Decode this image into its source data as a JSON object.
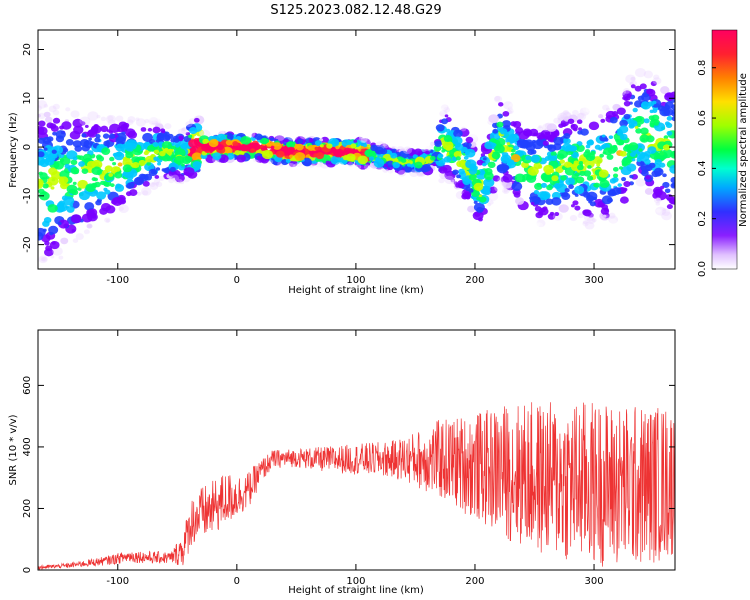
{
  "figure": {
    "title": "S125.2023.082.12.48.G29"
  },
  "chart_data": [
    {
      "type": "heatmap",
      "title": "",
      "xlabel": "Height of straight line (km)",
      "ylabel": "Frequency (Hz)",
      "xlim": [
        -167,
        368
      ],
      "ylim": [
        -25,
        24
      ],
      "xticks": [
        -100,
        0,
        100,
        200,
        300
      ],
      "yticks": [
        -20,
        -10,
        0,
        10,
        20
      ],
      "colorbar": {
        "label": "Normalized spectral amplitude",
        "range": [
          0.0,
          0.95
        ],
        "ticks": [
          "0.0",
          "0.2",
          "0.4",
          "0.6",
          "0.8"
        ],
        "colormap": [
          "#ffffff",
          "#e8d0ff",
          "#7a00ff",
          "#2040ff",
          "#00c8ff",
          "#00ff60",
          "#c8ff00",
          "#ffb000",
          "#ff3030",
          "#ff0060"
        ]
      },
      "ridge": [
        {
          "x": -165,
          "y": -8
        },
        {
          "x": -140,
          "y": -7
        },
        {
          "x": -120,
          "y": -5
        },
        {
          "x": -100,
          "y": -4
        },
        {
          "x": -80,
          "y": -2
        },
        {
          "x": -60,
          "y": -1
        },
        {
          "x": -45,
          "y": -2
        },
        {
          "x": -35,
          "y": 0
        },
        {
          "x": -20,
          "y": 0
        },
        {
          "x": 0,
          "y": 0
        },
        {
          "x": 20,
          "y": 0
        },
        {
          "x": 40,
          "y": -1
        },
        {
          "x": 60,
          "y": -1
        },
        {
          "x": 80,
          "y": -1
        },
        {
          "x": 100,
          "y": -1
        },
        {
          "x": 120,
          "y": -2
        },
        {
          "x": 140,
          "y": -3
        },
        {
          "x": 160,
          "y": -3
        },
        {
          "x": 175,
          "y": 1
        },
        {
          "x": 190,
          "y": -3
        },
        {
          "x": 205,
          "y": -9
        },
        {
          "x": 220,
          "y": 2
        },
        {
          "x": 240,
          "y": -4
        },
        {
          "x": 260,
          "y": -6
        },
        {
          "x": 280,
          "y": -3
        },
        {
          "x": 300,
          "y": -5
        },
        {
          "x": 320,
          "y": -2
        },
        {
          "x": 340,
          "y": 4
        },
        {
          "x": 360,
          "y": 0
        }
      ]
    },
    {
      "type": "line",
      "title": "",
      "xlabel": "Height of straight line (km)",
      "ylabel": "SNR (10 * v/v)",
      "xlim": [
        -167,
        368
      ],
      "ylim": [
        0,
        780
      ],
      "xticks": [
        -100,
        0,
        100,
        200,
        300
      ],
      "yticks": [
        0,
        200,
        400,
        600
      ],
      "color": "#ee3333",
      "envelope": {
        "x": [
          -167,
          -140,
          -110,
          -90,
          -70,
          -55,
          -45,
          -38,
          -30,
          -20,
          -10,
          0,
          10,
          20,
          30,
          50,
          70,
          100,
          130,
          150,
          170,
          190,
          210,
          230,
          250,
          270,
          290,
          310,
          330,
          350,
          368
        ],
        "mean": [
          8,
          15,
          30,
          45,
          40,
          40,
          70,
          160,
          180,
          200,
          230,
          240,
          260,
          320,
          360,
          365,
          360,
          360,
          360,
          360,
          360,
          345,
          330,
          320,
          300,
          290,
          285,
          280,
          270,
          280,
          290
        ],
        "spread": [
          6,
          8,
          15,
          20,
          20,
          20,
          60,
          80,
          90,
          90,
          90,
          70,
          60,
          40,
          30,
          30,
          40,
          50,
          60,
          90,
          130,
          160,
          190,
          230,
          250,
          260,
          270,
          270,
          270,
          260,
          250
        ]
      }
    }
  ]
}
